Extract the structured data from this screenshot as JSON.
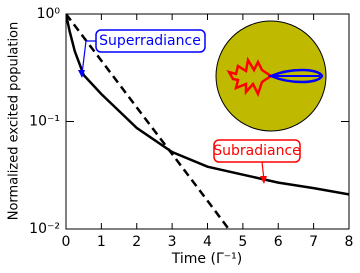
{
  "chart_data": {
    "type": "line",
    "xlabel": "Time (Γ⁻¹)",
    "ylabel": "Normalized excited population",
    "xlim": [
      0,
      8
    ],
    "ylim": [
      0.01,
      1
    ],
    "yscale": "log",
    "xticks": [
      0,
      1,
      2,
      3,
      4,
      5,
      6,
      7,
      8
    ],
    "yticks": [
      {
        "value": 0.01,
        "label": "10⁻²"
      },
      {
        "value": 0.1,
        "label": "10⁻¹"
      },
      {
        "value": 1,
        "label": "10⁰"
      }
    ],
    "series": [
      {
        "color": "#000000",
        "linestyle": "solid",
        "x": [
          0,
          0.1,
          0.25,
          0.5,
          1,
          2,
          3,
          4,
          5,
          6,
          7,
          8
        ],
        "values": [
          1,
          0.7,
          0.45,
          0.27,
          0.18,
          0.087,
          0.052,
          0.038,
          0.032,
          0.027,
          0.024,
          0.021
        ]
      },
      {
        "color": "#000000",
        "linestyle": "dashed",
        "x": [
          0,
          1,
          2,
          3,
          4,
          4.6
        ],
        "values": [
          1,
          0.368,
          0.135,
          0.0498,
          0.0183,
          0.01
        ]
      }
    ],
    "annotations": [
      {
        "text": "Superradiance",
        "color": "#0000ff"
      },
      {
        "text": "Subradiance",
        "color": "#ff0000"
      }
    ]
  }
}
